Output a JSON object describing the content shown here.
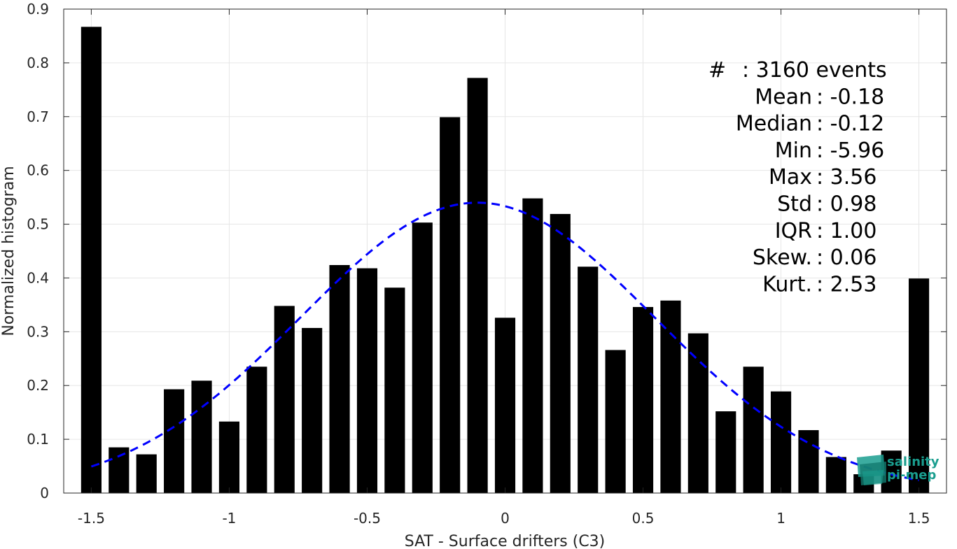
{
  "chart_data": {
    "type": "bar",
    "xlabel": "SAT - Surface drifters (C3)",
    "ylabel": "Normalized histogram",
    "xlim": [
      -1.6,
      1.6
    ],
    "ylim": [
      0,
      0.9
    ],
    "xticks": [
      -1.5,
      -1,
      -0.5,
      0,
      0.5,
      1,
      1.5
    ],
    "xtick_labels": [
      "-1.5",
      "-1",
      "-0.5",
      "0",
      "0.5",
      "1",
      "1.5"
    ],
    "yticks": [
      0,
      0.1,
      0.2,
      0.3,
      0.4,
      0.5,
      0.6,
      0.7,
      0.8,
      0.9
    ],
    "ytick_labels": [
      "0",
      "0.1",
      "0.2",
      "0.3",
      "0.4",
      "0.5",
      "0.6",
      "0.7",
      "0.8",
      "0.9"
    ],
    "grid": true,
    "bar_color": "#000000",
    "curve_color": "#0000ff",
    "bars": [
      {
        "x": -1.5,
        "y": 0.867
      },
      {
        "x": -1.4,
        "y": 0.085
      },
      {
        "x": -1.3,
        "y": 0.072
      },
      {
        "x": -1.2,
        "y": 0.193
      },
      {
        "x": -1.1,
        "y": 0.209
      },
      {
        "x": -1.0,
        "y": 0.133
      },
      {
        "x": -0.9,
        "y": 0.235
      },
      {
        "x": -0.8,
        "y": 0.348
      },
      {
        "x": -0.7,
        "y": 0.307
      },
      {
        "x": -0.6,
        "y": 0.424
      },
      {
        "x": -0.5,
        "y": 0.418
      },
      {
        "x": -0.4,
        "y": 0.382
      },
      {
        "x": -0.3,
        "y": 0.503
      },
      {
        "x": -0.2,
        "y": 0.699
      },
      {
        "x": -0.1,
        "y": 0.772
      },
      {
        "x": 0.0,
        "y": 0.326
      },
      {
        "x": 0.1,
        "y": 0.548
      },
      {
        "x": 0.2,
        "y": 0.519
      },
      {
        "x": 0.3,
        "y": 0.421
      },
      {
        "x": 0.4,
        "y": 0.266
      },
      {
        "x": 0.5,
        "y": 0.346
      },
      {
        "x": 0.6,
        "y": 0.358
      },
      {
        "x": 0.7,
        "y": 0.297
      },
      {
        "x": 0.8,
        "y": 0.152
      },
      {
        "x": 0.9,
        "y": 0.235
      },
      {
        "x": 1.0,
        "y": 0.189
      },
      {
        "x": 1.1,
        "y": 0.117
      },
      {
        "x": 1.2,
        "y": 0.067
      },
      {
        "x": 1.3,
        "y": 0.035
      },
      {
        "x": 1.4,
        "y": 0.079
      },
      {
        "x": 1.5,
        "y": 0.399
      }
    ],
    "fit_curve": {
      "style": "dashed",
      "type": "gaussian",
      "x_range": [
        -1.5,
        1.5
      ]
    },
    "stats": [
      {
        "label": "#",
        "value": ": 3160 events"
      },
      {
        "label": "Mean",
        "value": ": -0.18"
      },
      {
        "label": "Median",
        "value": ": -0.12"
      },
      {
        "label": "Min",
        "value": ": -5.96"
      },
      {
        "label": "Max",
        "value": ": 3.56"
      },
      {
        "label": "Std",
        "value": ": 0.98"
      },
      {
        "label": "IQR",
        "value": ": 1.00"
      },
      {
        "label": "Skew.",
        "value": ": 0.06"
      },
      {
        "label": "Kurt.",
        "value": ": 2.53"
      }
    ]
  },
  "logo": {
    "line1": "salinity",
    "line2": "pi-mep",
    "color": "#1a9e8f"
  }
}
